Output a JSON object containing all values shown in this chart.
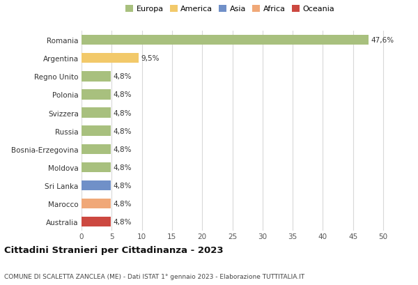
{
  "categories": [
    "Romania",
    "Argentina",
    "Regno Unito",
    "Polonia",
    "Svizzera",
    "Russia",
    "Bosnia-Erzegovina",
    "Moldova",
    "Sri Lanka",
    "Marocco",
    "Australia"
  ],
  "values": [
    47.6,
    9.5,
    4.8,
    4.8,
    4.8,
    4.8,
    4.8,
    4.8,
    4.8,
    4.8,
    4.8
  ],
  "labels": [
    "47,6%",
    "9,5%",
    "4,8%",
    "4,8%",
    "4,8%",
    "4,8%",
    "4,8%",
    "4,8%",
    "4,8%",
    "4,8%",
    "4,8%"
  ],
  "bar_colors": [
    "#a8c07e",
    "#f2c96a",
    "#a8c07e",
    "#a8c07e",
    "#a8c07e",
    "#a8c07e",
    "#a8c07e",
    "#a8c07e",
    "#7090c8",
    "#f0a878",
    "#cc4840"
  ],
  "legend_labels": [
    "Europa",
    "America",
    "Asia",
    "Africa",
    "Oceania"
  ],
  "legend_colors": [
    "#a8c07e",
    "#f2c96a",
    "#7090c8",
    "#f0a878",
    "#cc4840"
  ],
  "xlim": [
    0,
    53
  ],
  "xticks": [
    0,
    5,
    10,
    15,
    20,
    25,
    30,
    35,
    40,
    45,
    50
  ],
  "title": "Cittadini Stranieri per Cittadinanza - 2023",
  "subtitle": "COMUNE DI SCALETTA ZANCLEA (ME) - Dati ISTAT 1° gennaio 2023 - Elaborazione TUTTITALIA.IT",
  "background_color": "#ffffff",
  "grid_color": "#d8d8d8",
  "bar_height": 0.55
}
